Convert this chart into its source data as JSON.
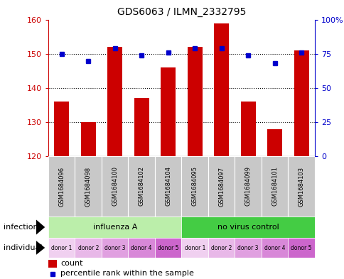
{
  "title": "GDS6063 / ILMN_2332795",
  "samples": [
    "GSM1684096",
    "GSM1684098",
    "GSM1684100",
    "GSM1684102",
    "GSM1684104",
    "GSM1684095",
    "GSM1684097",
    "GSM1684099",
    "GSM1684101",
    "GSM1684103"
  ],
  "counts": [
    136,
    130,
    152,
    137,
    146,
    152,
    159,
    136,
    128,
    151
  ],
  "percentiles": [
    75,
    70,
    79,
    74,
    76,
    79,
    79,
    74,
    68,
    76
  ],
  "ylim_left": [
    120,
    160
  ],
  "ylim_right": [
    0,
    100
  ],
  "yticks_left": [
    120,
    130,
    140,
    150,
    160
  ],
  "yticks_right": [
    0,
    25,
    50,
    75,
    100
  ],
  "ytick_labels_right": [
    "0",
    "25",
    "50",
    "75",
    "100%"
  ],
  "bar_color": "#cc0000",
  "dot_color": "#0000cc",
  "bar_bottom": 120,
  "gsm_bg_color": "#c8c8c8",
  "left_tick_color": "#cc0000",
  "right_tick_color": "#0000cc",
  "infect_groups": [
    {
      "label": "influenza A",
      "start": 0,
      "end": 5,
      "color": "#bbeeaa"
    },
    {
      "label": "no virus control",
      "start": 5,
      "end": 10,
      "color": "#44cc44"
    }
  ],
  "individual_labels": [
    "donor 1",
    "donor 2",
    "donor 3",
    "donor 4",
    "donor 5",
    "donor 1",
    "donor 2",
    "donor 3",
    "donor 4",
    "donor 5"
  ],
  "individual_colors": [
    "#f0d0f0",
    "#e8b8e8",
    "#e0a0e0",
    "#d888d8",
    "#cc66cc",
    "#f0d0f0",
    "#e8b8e8",
    "#e0a0e0",
    "#d888d8",
    "#cc66cc"
  ],
  "figsize": [
    4.85,
    3.93
  ],
  "dpi": 100
}
